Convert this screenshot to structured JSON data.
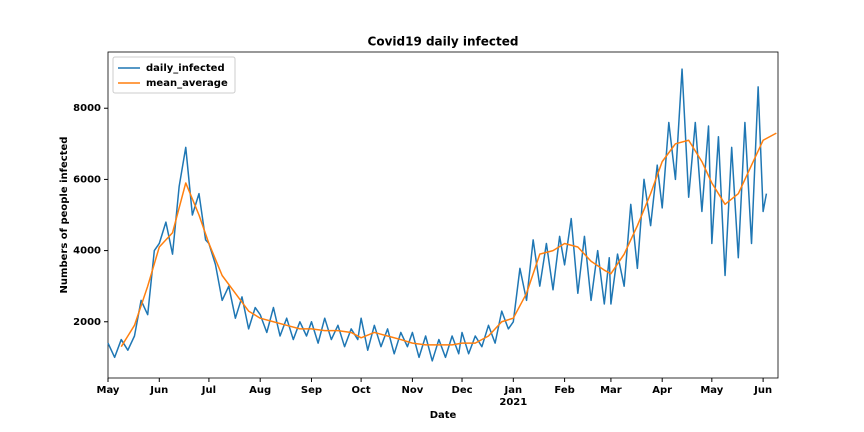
{
  "chart_data": {
    "type": "line",
    "title": "Covid19 daily infected",
    "x_label": "Date",
    "y_label": "Numbers of people infected",
    "year_label": "2021",
    "xlim": [
      "2020-05-01",
      "2021-06-10"
    ],
    "ylim": [
      420,
      9580
    ],
    "xticks": [
      {
        "value": "2020-05-01",
        "label": "May"
      },
      {
        "value": "2020-06-01",
        "label": "Jun"
      },
      {
        "value": "2020-07-01",
        "label": "Jul"
      },
      {
        "value": "2020-08-01",
        "label": "Aug"
      },
      {
        "value": "2020-09-01",
        "label": "Sep"
      },
      {
        "value": "2020-10-01",
        "label": "Oct"
      },
      {
        "value": "2020-11-01",
        "label": "Nov"
      },
      {
        "value": "2020-12-01",
        "label": "Dec"
      },
      {
        "value": "2021-01-01",
        "label": "Jan"
      },
      {
        "value": "2021-02-01",
        "label": "Feb"
      },
      {
        "value": "2021-03-01",
        "label": "Mar"
      },
      {
        "value": "2021-04-01",
        "label": "Apr"
      },
      {
        "value": "2021-05-01",
        "label": "May"
      },
      {
        "value": "2021-06-01",
        "label": "Jun"
      }
    ],
    "yticks": [
      2000,
      4000,
      6000,
      8000
    ],
    "legend": "upper left",
    "grid": false,
    "series": [
      {
        "name": "daily_infected",
        "color": "#1f77b4",
        "x": [
          "2020-05-01",
          "2020-05-05",
          "2020-05-09",
          "2020-05-13",
          "2020-05-17",
          "2020-05-21",
          "2020-05-25",
          "2020-05-29",
          "2020-06-01",
          "2020-06-05",
          "2020-06-09",
          "2020-06-13",
          "2020-06-17",
          "2020-06-21",
          "2020-06-25",
          "2020-06-29",
          "2020-07-01",
          "2020-07-05",
          "2020-07-09",
          "2020-07-13",
          "2020-07-17",
          "2020-07-21",
          "2020-07-25",
          "2020-07-29",
          "2020-08-01",
          "2020-08-05",
          "2020-08-09",
          "2020-08-13",
          "2020-08-17",
          "2020-08-21",
          "2020-08-25",
          "2020-08-29",
          "2020-09-01",
          "2020-09-05",
          "2020-09-09",
          "2020-09-13",
          "2020-09-17",
          "2020-09-21",
          "2020-09-25",
          "2020-09-29",
          "2020-10-01",
          "2020-10-05",
          "2020-10-09",
          "2020-10-13",
          "2020-10-17",
          "2020-10-21",
          "2020-10-25",
          "2020-10-29",
          "2020-11-01",
          "2020-11-05",
          "2020-11-09",
          "2020-11-13",
          "2020-11-17",
          "2020-11-21",
          "2020-11-25",
          "2020-11-29",
          "2020-12-01",
          "2020-12-05",
          "2020-12-09",
          "2020-12-13",
          "2020-12-17",
          "2020-12-21",
          "2020-12-25",
          "2020-12-29",
          "2021-01-01",
          "2021-01-05",
          "2021-01-09",
          "2021-01-13",
          "2021-01-17",
          "2021-01-21",
          "2021-01-25",
          "2021-01-29",
          "2021-02-01",
          "2021-02-05",
          "2021-02-09",
          "2021-02-13",
          "2021-02-17",
          "2021-02-21",
          "2021-02-25",
          "2021-02-28",
          "2021-03-01",
          "2021-03-05",
          "2021-03-09",
          "2021-03-13",
          "2021-03-17",
          "2021-03-21",
          "2021-03-25",
          "2021-03-29",
          "2021-04-01",
          "2021-04-05",
          "2021-04-09",
          "2021-04-13",
          "2021-04-17",
          "2021-04-21",
          "2021-04-25",
          "2021-04-29",
          "2021-05-01",
          "2021-05-05",
          "2021-05-09",
          "2021-05-13",
          "2021-05-17",
          "2021-05-21",
          "2021-05-25",
          "2021-05-29",
          "2021-06-01",
          "2021-06-03"
        ],
        "values": [
          1400,
          1000,
          1500,
          1200,
          1600,
          2600,
          2200,
          4000,
          4200,
          4800,
          3900,
          5800,
          6900,
          5000,
          5600,
          4300,
          4200,
          3600,
          2600,
          3000,
          2100,
          2700,
          1800,
          2400,
          2200,
          1700,
          2400,
          1600,
          2100,
          1500,
          2000,
          1600,
          2000,
          1400,
          2100,
          1500,
          1900,
          1300,
          1800,
          1500,
          2100,
          1200,
          1900,
          1300,
          1800,
          1100,
          1700,
          1300,
          1700,
          1000,
          1600,
          900,
          1500,
          1000,
          1600,
          1100,
          1700,
          1100,
          1600,
          1300,
          1900,
          1400,
          2300,
          1800,
          2000,
          3500,
          2600,
          4300,
          3000,
          4200,
          2900,
          4400,
          3600,
          4900,
          2800,
          4400,
          2600,
          4000,
          2500,
          3800,
          2500,
          3900,
          3000,
          5300,
          3500,
          6000,
          4700,
          6400,
          5200,
          7600,
          6000,
          9100,
          5500,
          7600,
          5100,
          7500,
          4200,
          7200,
          3300,
          6900,
          3800,
          7600,
          4200,
          8600,
          5100,
          5600
        ]
      },
      {
        "name": "mean_average",
        "color": "#ff7f0e",
        "x": [
          "2020-05-09",
          "2020-05-17",
          "2020-05-25",
          "2020-06-01",
          "2020-06-09",
          "2020-06-17",
          "2020-06-25",
          "2020-07-01",
          "2020-07-09",
          "2020-07-17",
          "2020-07-25",
          "2020-08-01",
          "2020-08-09",
          "2020-08-17",
          "2020-08-25",
          "2020-09-01",
          "2020-09-09",
          "2020-09-17",
          "2020-09-25",
          "2020-10-01",
          "2020-10-09",
          "2020-10-17",
          "2020-10-25",
          "2020-11-01",
          "2020-11-09",
          "2020-11-17",
          "2020-11-25",
          "2020-12-01",
          "2020-12-09",
          "2020-12-17",
          "2020-12-25",
          "2021-01-01",
          "2021-01-09",
          "2021-01-17",
          "2021-01-25",
          "2021-02-01",
          "2021-02-09",
          "2021-02-17",
          "2021-02-25",
          "2021-03-01",
          "2021-03-09",
          "2021-03-17",
          "2021-03-25",
          "2021-04-01",
          "2021-04-09",
          "2021-04-17",
          "2021-04-25",
          "2021-05-01",
          "2021-05-09",
          "2021-05-17",
          "2021-05-25",
          "2021-06-01",
          "2021-06-09"
        ],
        "values": [
          1300,
          1900,
          3000,
          4100,
          4500,
          5900,
          5000,
          4200,
          3300,
          2800,
          2300,
          2100,
          2000,
          1900,
          1800,
          1800,
          1750,
          1750,
          1700,
          1550,
          1700,
          1600,
          1500,
          1400,
          1350,
          1350,
          1350,
          1400,
          1400,
          1600,
          2000,
          2100,
          2800,
          3900,
          4000,
          4200,
          4100,
          3700,
          3450,
          3350,
          3900,
          4700,
          5600,
          6500,
          7000,
          7100,
          6500,
          5900,
          5300,
          5600,
          6400,
          7100,
          7300
        ]
      }
    ]
  }
}
